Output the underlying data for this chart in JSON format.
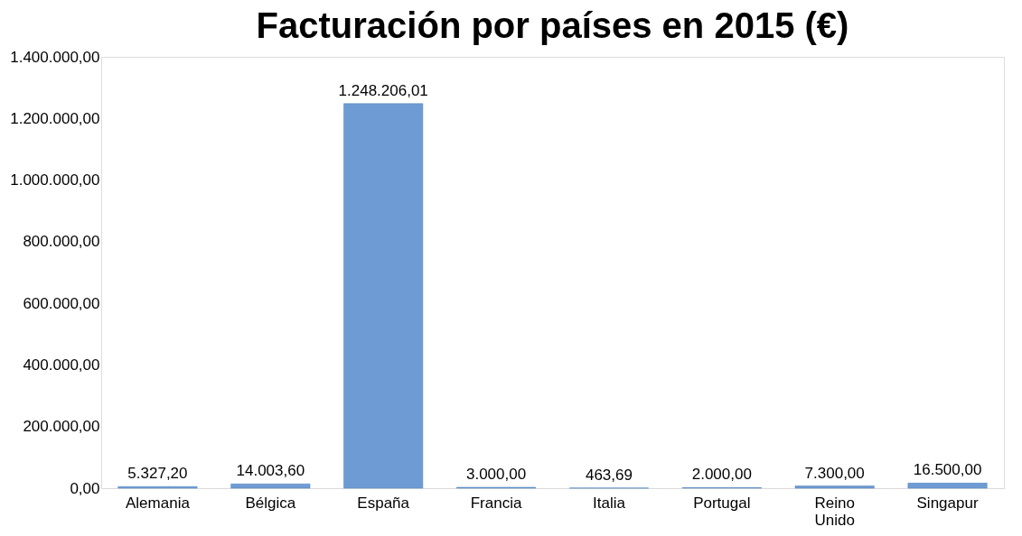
{
  "chart_data": {
    "type": "bar",
    "title": "Facturación por países en 2015 (€)",
    "categories": [
      "Alemania",
      "Bélgica",
      "España",
      "Francia",
      "Italia",
      "Portugal",
      "Reino Unido",
      "Singapur"
    ],
    "values": [
      5327.2,
      14003.6,
      1248206.01,
      3000.0,
      463.69,
      2000.0,
      7300.0,
      16500.0
    ],
    "value_labels": [
      "5.327,20",
      "14.003,60",
      "1.248.206,01",
      "3.000,00",
      "463,69",
      "2.000,00",
      "7.300,00",
      "16.500,00"
    ],
    "color": "#6f9bd4",
    "ylim": [
      0,
      1400000
    ],
    "yticks": [
      {
        "value": 0,
        "label": "0,00"
      },
      {
        "value": 200000,
        "label": "200.000,00"
      },
      {
        "value": 400000,
        "label": "400.000,00"
      },
      {
        "value": 600000,
        "label": "600.000,00"
      },
      {
        "value": 800000,
        "label": "800.000,00"
      },
      {
        "value": 1000000,
        "label": "1.000.000,00"
      },
      {
        "value": 1200000,
        "label": "1.200.000,00"
      },
      {
        "value": 1400000,
        "label": "1.400.000,00"
      }
    ],
    "grid": false
  }
}
